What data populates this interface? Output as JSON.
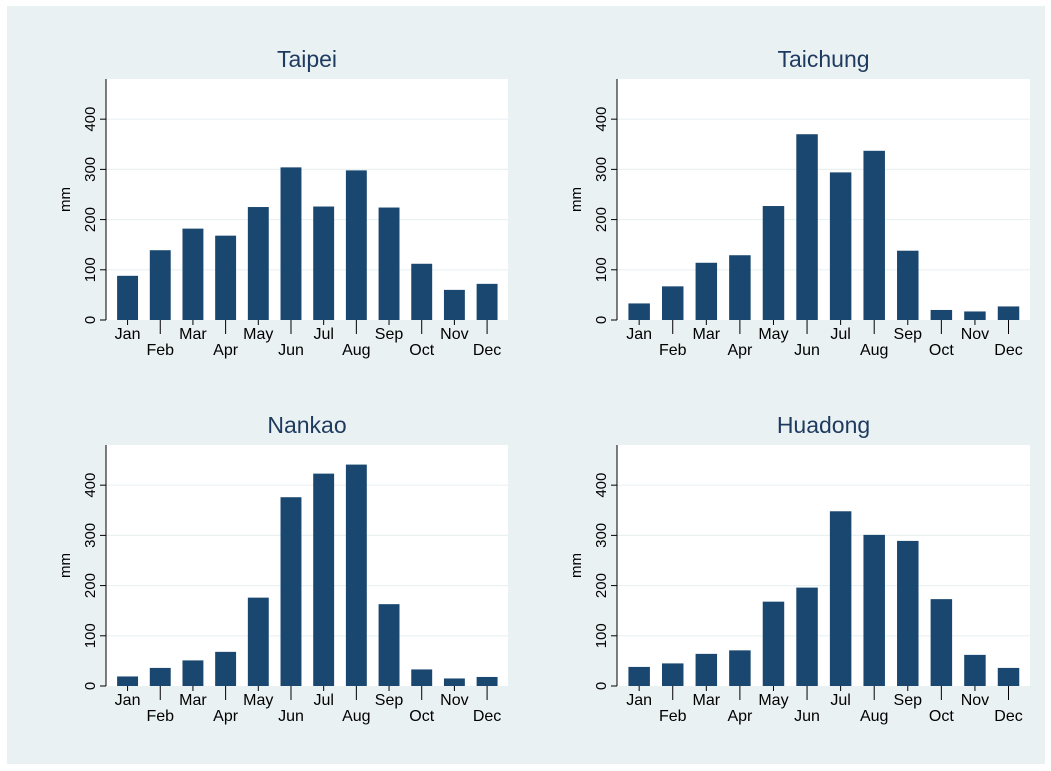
{
  "chart_data": [
    {
      "type": "bar",
      "title": "Taipei",
      "ylabel": "mm",
      "xlabel": "",
      "ylim": [
        0,
        480
      ],
      "yticks": [
        0,
        100,
        200,
        300,
        400
      ],
      "grid": true,
      "categories": [
        "Jan",
        "Feb",
        "Mar",
        "Apr",
        "May",
        "Jun",
        "Jul",
        "Aug",
        "Sep",
        "Oct",
        "Nov",
        "Dec"
      ],
      "values": [
        88,
        139,
        182,
        168,
        225,
        304,
        226,
        298,
        224,
        112,
        60,
        72
      ]
    },
    {
      "type": "bar",
      "title": "Taichung",
      "ylabel": "mm",
      "xlabel": "",
      "ylim": [
        0,
        480
      ],
      "yticks": [
        0,
        100,
        200,
        300,
        400
      ],
      "grid": true,
      "categories": [
        "Jan",
        "Feb",
        "Mar",
        "Apr",
        "May",
        "Jun",
        "Jul",
        "Aug",
        "Sep",
        "Oct",
        "Nov",
        "Dec"
      ],
      "values": [
        33,
        67,
        114,
        129,
        227,
        370,
        294,
        337,
        138,
        20,
        17,
        27
      ]
    },
    {
      "type": "bar",
      "title": "Nankao",
      "ylabel": "mm",
      "xlabel": "",
      "ylim": [
        0,
        480
      ],
      "yticks": [
        0,
        100,
        200,
        300,
        400
      ],
      "grid": true,
      "categories": [
        "Jan",
        "Feb",
        "Mar",
        "Apr",
        "May",
        "Jun",
        "Jul",
        "Aug",
        "Sep",
        "Oct",
        "Nov",
        "Dec"
      ],
      "values": [
        19,
        36,
        51,
        68,
        176,
        376,
        423,
        441,
        163,
        33,
        15,
        18
      ]
    },
    {
      "type": "bar",
      "title": "Huadong",
      "ylabel": "mm",
      "xlabel": "",
      "ylim": [
        0,
        480
      ],
      "yticks": [
        0,
        100,
        200,
        300,
        400
      ],
      "grid": true,
      "categories": [
        "Jan",
        "Feb",
        "Mar",
        "Apr",
        "May",
        "Jun",
        "Jul",
        "Aug",
        "Sep",
        "Oct",
        "Nov",
        "Dec"
      ],
      "values": [
        38,
        45,
        64,
        71,
        168,
        196,
        348,
        301,
        289,
        173,
        62,
        36
      ]
    }
  ],
  "colors": {
    "background": "#eaf1f3",
    "plot_region": "#ffffff",
    "bar": "#1a476f",
    "title": "#1e3a5f",
    "grid": "#eaf1f3",
    "text": "#000000"
  }
}
